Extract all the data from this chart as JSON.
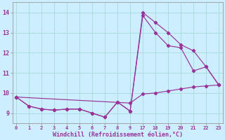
{
  "background_color": "#cceeff",
  "grid_color": "#aadddd",
  "line_color": "#993399",
  "xlabel": "Windchill (Refroidissement éolien,°C)",
  "tick_labels": [
    "0",
    "1",
    "2",
    "3",
    "4",
    "5",
    "6",
    "7",
    "8",
    "9",
    "17",
    "18",
    "19",
    "20",
    "21",
    "22",
    "23"
  ],
  "yticks": [
    9,
    10,
    11,
    12,
    13,
    14
  ],
  "ylim": [
    8.5,
    14.5
  ],
  "series": [
    {
      "indices": [
        0,
        1,
        2,
        3,
        4,
        5,
        6,
        7,
        8,
        9,
        10,
        11,
        12,
        13,
        14,
        15,
        16
      ],
      "y": [
        9.8,
        9.35,
        9.2,
        9.15,
        9.2,
        9.2,
        9.0,
        8.8,
        9.55,
        9.1,
        14.0,
        13.5,
        13.0,
        12.4,
        12.1,
        11.3,
        10.4
      ]
    },
    {
      "indices": [
        0,
        1,
        2,
        3,
        4,
        5,
        6,
        7,
        8,
        9,
        10,
        11,
        12,
        13,
        14,
        15,
        16
      ],
      "y": [
        9.8,
        9.35,
        9.2,
        9.15,
        9.2,
        9.2,
        9.0,
        8.8,
        9.55,
        9.1,
        13.85,
        13.0,
        12.35,
        12.25,
        11.1,
        11.3,
        10.4
      ]
    },
    {
      "indices": [
        0,
        9,
        10,
        11,
        12,
        13,
        14,
        15,
        16
      ],
      "y": [
        9.8,
        9.5,
        9.95,
        10.0,
        10.1,
        10.2,
        10.3,
        10.35,
        10.4
      ]
    }
  ]
}
